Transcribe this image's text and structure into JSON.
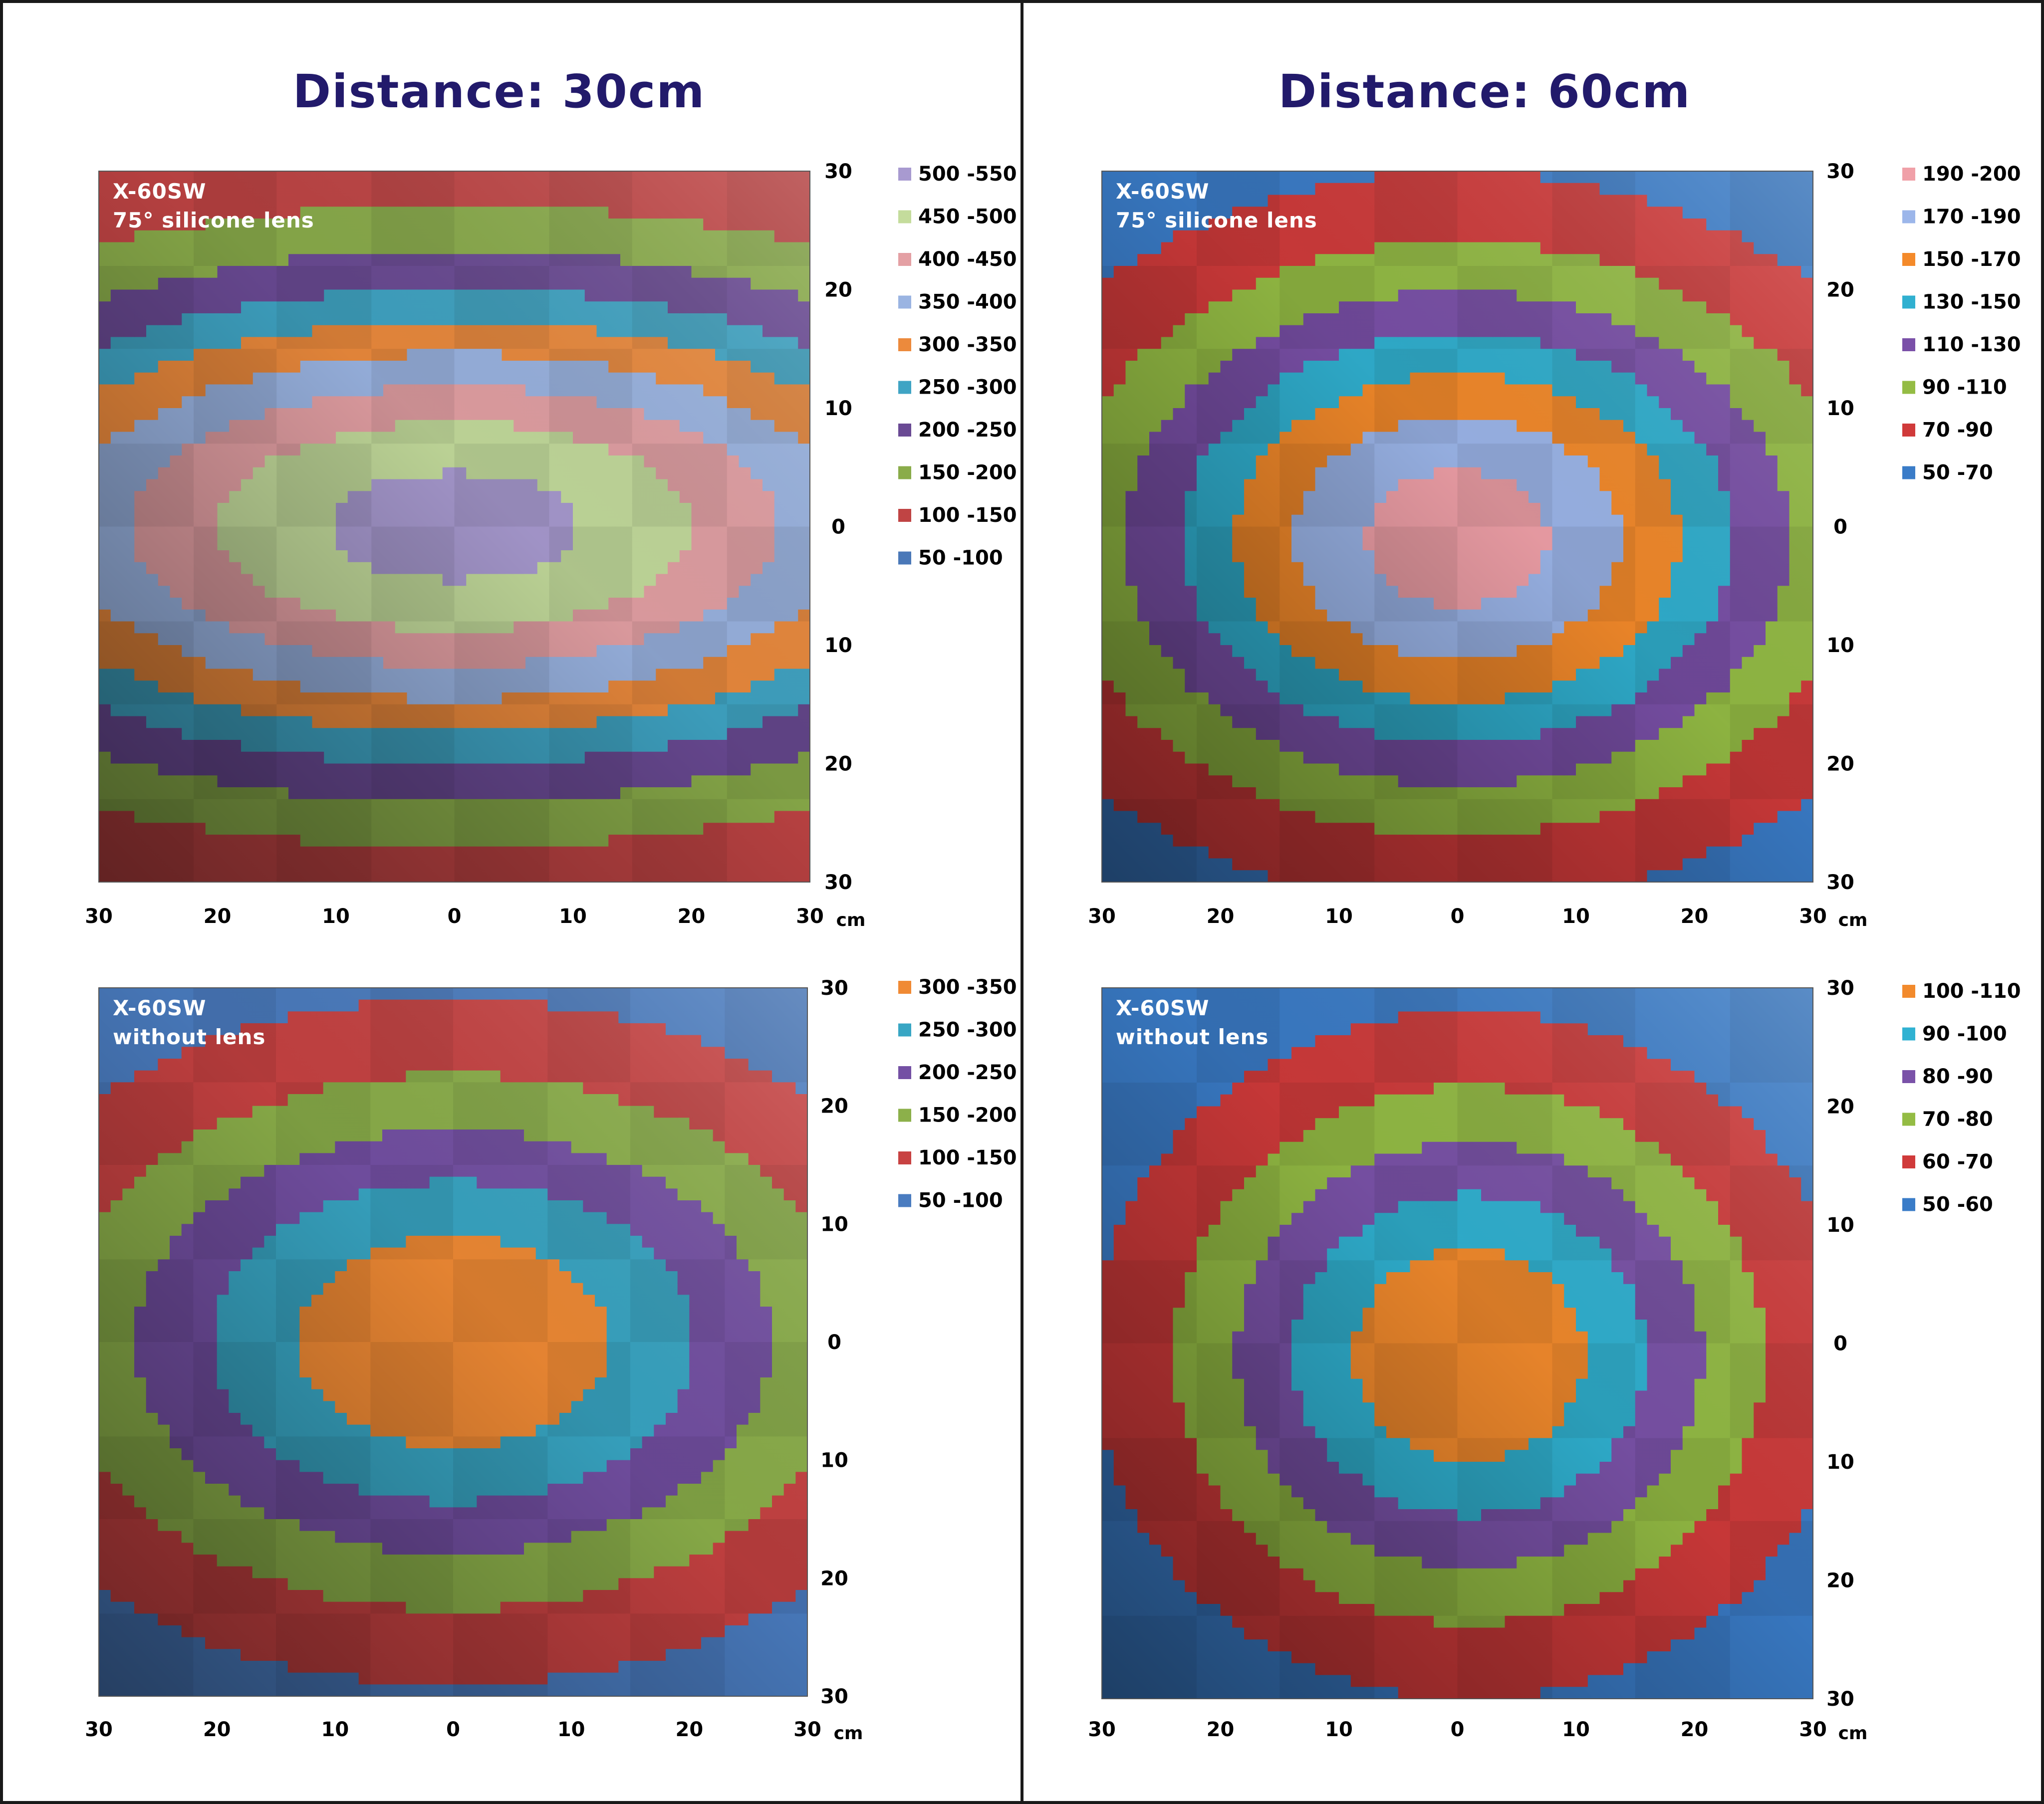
{
  "titles": {
    "left": "Distance: 30cm",
    "right": "Distance: 60cm"
  },
  "unit_label": "cm",
  "chart_data": [
    {
      "type": "heatmap",
      "label_lines": [
        "X-60SW",
        "75° silicone lens"
      ],
      "x_ticks": [
        "30",
        "20",
        "10",
        "0",
        "10",
        "20",
        "30"
      ],
      "y_ticks": [
        "30",
        "20",
        "10",
        "0",
        "10",
        "20",
        "30"
      ],
      "xlim": [
        -30,
        30
      ],
      "ylim": [
        -30,
        30
      ],
      "peak": 520,
      "center": [
        0,
        0
      ],
      "spread": [
        2.3,
        1.0
      ],
      "levels": [
        {
          "label": "500 -550",
          "min": 500,
          "max": 550,
          "color": "#a89ad0"
        },
        {
          "label": "450 -500",
          "min": 450,
          "max": 500,
          "color": "#c4dc9c"
        },
        {
          "label": "400 -450",
          "min": 400,
          "max": 450,
          "color": "#e4a0a4"
        },
        {
          "label": "350 -400",
          "min": 350,
          "max": 400,
          "color": "#9ab4e2"
        },
        {
          "label": "300 -350",
          "min": 300,
          "max": 350,
          "color": "#ec8a3c"
        },
        {
          "label": "250 -300",
          "min": 250,
          "max": 300,
          "color": "#3fa4c4"
        },
        {
          "label": "200 -250",
          "min": 200,
          "max": 250,
          "color": "#6a4a94"
        },
        {
          "label": "150 -200",
          "min": 150,
          "max": 200,
          "color": "#8aac4a"
        },
        {
          "label": "100 -150",
          "min": 100,
          "max": 150,
          "color": "#c04444"
        },
        {
          "label": "50 -100",
          "min": 50,
          "max": 100,
          "color": "#4a78b8"
        }
      ]
    },
    {
      "type": "heatmap",
      "label_lines": [
        "X-60SW",
        "75° silicone lens"
      ],
      "x_ticks": [
        "30",
        "20",
        "10",
        "0",
        "10",
        "20",
        "30"
      ],
      "y_ticks": [
        "30",
        "20",
        "10",
        "0",
        "10",
        "20",
        "30"
      ],
      "xlim": [
        -30,
        30
      ],
      "ylim": [
        -30,
        30
      ],
      "peak": 200,
      "center": [
        0,
        -1
      ],
      "spread": [
        1.35,
        1.0
      ],
      "levels": [
        {
          "label": "190 -200",
          "min": 190,
          "max": 200,
          "color": "#f0a0a8"
        },
        {
          "label": "170 -190",
          "min": 170,
          "max": 190,
          "color": "#9cb6ea"
        },
        {
          "label": "150 -170",
          "min": 150,
          "max": 170,
          "color": "#f48a2a"
        },
        {
          "label": "130 -150",
          "min": 130,
          "max": 150,
          "color": "#30b0d0"
        },
        {
          "label": "110 -130",
          "min": 110,
          "max": 130,
          "color": "#7a50a8"
        },
        {
          "label": "90 -110",
          "min": 90,
          "max": 110,
          "color": "#94bc44"
        },
        {
          "label": "70 -90",
          "min": 70,
          "max": 90,
          "color": "#d03a3a"
        },
        {
          "label": "50 -70",
          "min": 50,
          "max": 70,
          "color": "#3a7cc8"
        }
      ]
    },
    {
      "type": "heatmap",
      "label_lines": [
        "X-60SW",
        "without lens"
      ],
      "x_ticks": [
        "30",
        "20",
        "10",
        "0",
        "10",
        "20",
        "30"
      ],
      "y_ticks": [
        "30",
        "20",
        "10",
        "0",
        "10",
        "20",
        "30"
      ],
      "xlim": [
        -30,
        30
      ],
      "ylim": [
        -30,
        30
      ],
      "peak": 345,
      "center": [
        0,
        0
      ],
      "spread": [
        1.5,
        1.0
      ],
      "levels": [
        {
          "label": "300 -350",
          "min": 300,
          "max": 350,
          "color": "#f08a34"
        },
        {
          "label": "250 -300",
          "min": 250,
          "max": 300,
          "color": "#38a6c4"
        },
        {
          "label": "200 -250",
          "min": 200,
          "max": 250,
          "color": "#7450a4"
        },
        {
          "label": "150 -200",
          "min": 150,
          "max": 200,
          "color": "#8cb04a"
        },
        {
          "label": "100 -150",
          "min": 100,
          "max": 150,
          "color": "#c84242"
        },
        {
          "label": "50 -100",
          "min": 50,
          "max": 100,
          "color": "#4a7cc0"
        }
      ]
    },
    {
      "type": "heatmap",
      "label_lines": [
        "X-60SW",
        "without lens"
      ],
      "x_ticks": [
        "30",
        "20",
        "10",
        "0",
        "10",
        "20",
        "30"
      ],
      "y_ticks": [
        "30",
        "20",
        "10",
        "0",
        "10",
        "20",
        "30"
      ],
      "xlim": [
        -30,
        30
      ],
      "ylim": [
        -30,
        30
      ],
      "peak": 109,
      "center": [
        1,
        -1
      ],
      "spread": [
        1.1,
        1.0
      ],
      "levels": [
        {
          "label": "100 -110",
          "min": 100,
          "max": 110,
          "color": "#f28a2c"
        },
        {
          "label": "90 -100",
          "min": 90,
          "max": 100,
          "color": "#30b2d2"
        },
        {
          "label": "80 -90",
          "min": 80,
          "max": 90,
          "color": "#7a52a8"
        },
        {
          "label": "70 -80",
          "min": 70,
          "max": 80,
          "color": "#94bc44"
        },
        {
          "label": "60 -70",
          "min": 60,
          "max": 70,
          "color": "#d03a3a"
        },
        {
          "label": "50 -60",
          "min": 50,
          "max": 60,
          "color": "#3a7cc8"
        }
      ]
    }
  ]
}
